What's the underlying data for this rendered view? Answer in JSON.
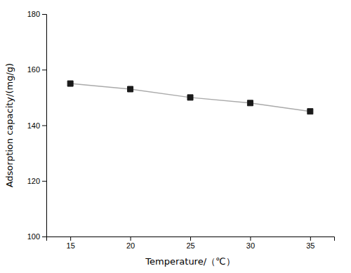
{
  "chart_data": {
    "type": "line",
    "x": [
      15,
      20,
      25,
      30,
      35
    ],
    "values": [
      155,
      153,
      150,
      148,
      145
    ],
    "color": "#aaaaaa",
    "colors": [
      "#1a1a1a",
      "#1a1a1a",
      "#1a1a1a",
      "#1a1a1a",
      "#1a1a1a"
    ],
    "marker": "square",
    "xlabel": "Temperature/（℃）",
    "ylabel": "Adsorption capacity/(mg/g)",
    "xlim": [
      13,
      37
    ],
    "ylim": [
      100,
      180
    ],
    "xticks": [
      15,
      20,
      25,
      30,
      35
    ],
    "yticks": [
      100,
      120,
      140,
      160,
      180
    ]
  }
}
